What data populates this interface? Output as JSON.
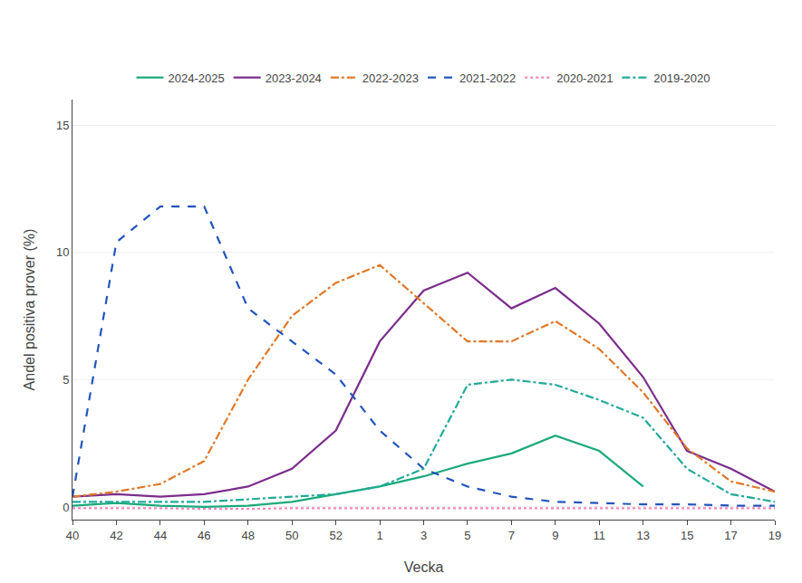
{
  "chart_data": {
    "type": "line",
    "xlabel": "Vecka",
    "ylabel": "Andel positiva prover (%)",
    "categories": [
      "40",
      "42",
      "44",
      "46",
      "48",
      "50",
      "52",
      "1",
      "3",
      "5",
      "7",
      "9",
      "11",
      "13",
      "15",
      "17",
      "19"
    ],
    "ylim": [
      -0.5,
      16
    ],
    "yticks": [
      0,
      5,
      10,
      15
    ],
    "grid": true,
    "legend": "top",
    "series": [
      {
        "name": "2024-2025",
        "color": "#1aaa7a",
        "line_style": "solid",
        "values": [
          0.05,
          0.15,
          0.05,
          0.0,
          0.05,
          0.2,
          0.5,
          0.8,
          1.2,
          1.7,
          2.1,
          2.8,
          2.2,
          0.8,
          null,
          null,
          null
        ]
      },
      {
        "name": "2023-2024",
        "color": "#7b2d8b",
        "line_style": "solid",
        "values": [
          0.4,
          0.5,
          0.4,
          0.5,
          0.8,
          1.5,
          3.0,
          6.5,
          8.5,
          9.2,
          7.8,
          8.6,
          7.2,
          5.1,
          2.2,
          1.5,
          0.6
        ]
      },
      {
        "name": "2022-2023",
        "color": "#e07828",
        "line_style": "dashdot",
        "values": [
          0.4,
          0.6,
          0.9,
          1.8,
          5.0,
          7.5,
          8.8,
          9.5,
          8.0,
          6.5,
          6.5,
          7.3,
          6.2,
          4.5,
          2.3,
          1.0,
          0.6
        ]
      },
      {
        "name": "2021-2022",
        "color": "#2255bb",
        "line_style": "dashed",
        "values": [
          0.4,
          10.4,
          11.8,
          11.8,
          7.8,
          6.5,
          5.2,
          3.0,
          1.5,
          0.8,
          0.4,
          0.2,
          0.15,
          0.1,
          0.1,
          0.05,
          0.05
        ]
      },
      {
        "name": "2020-2021",
        "color": "#ee88bb",
        "line_style": "dotted",
        "values": [
          -0.05,
          -0.05,
          -0.05,
          -0.08,
          -0.08,
          -0.05,
          -0.05,
          -0.05,
          -0.05,
          -0.05,
          -0.05,
          -0.05,
          -0.05,
          -0.05,
          -0.05,
          -0.05,
          -0.05
        ]
      },
      {
        "name": "2019-2020",
        "color": "#22aa99",
        "line_style": "dashdot",
        "values": [
          0.2,
          0.2,
          0.2,
          0.2,
          0.3,
          0.4,
          0.5,
          0.8,
          1.5,
          4.8,
          5.0,
          4.8,
          4.2,
          3.5,
          1.5,
          0.5,
          0.2
        ]
      }
    ]
  }
}
